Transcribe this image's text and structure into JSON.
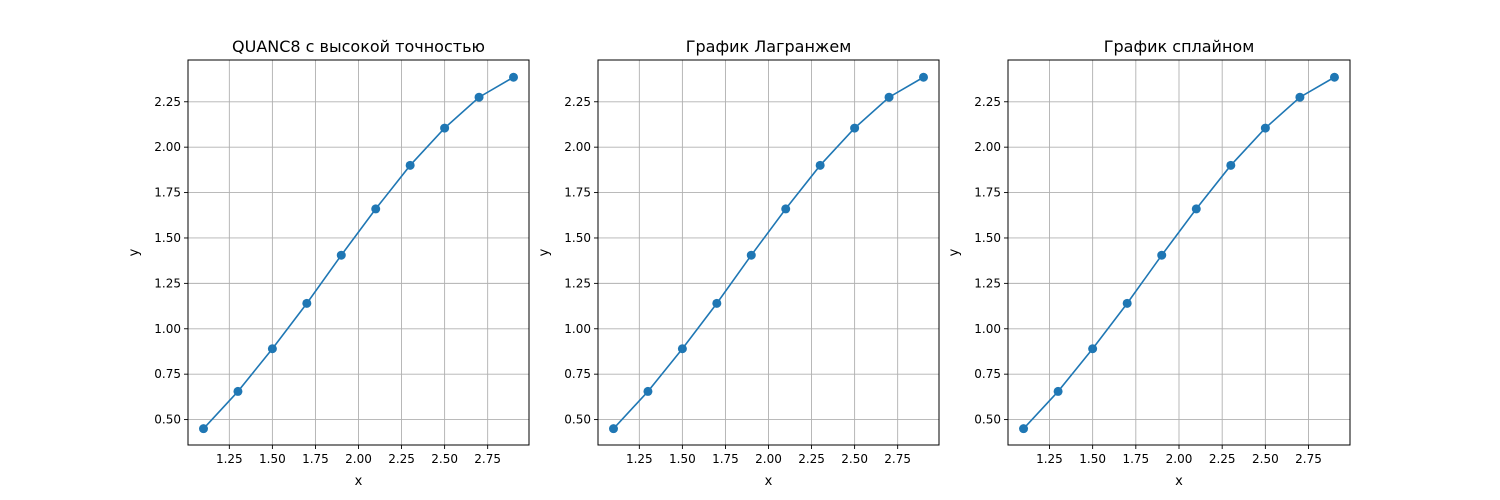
{
  "chart_data": [
    {
      "type": "line",
      "title": "QUANC8 с высокой точностью",
      "xlabel": "x",
      "ylabel": "y",
      "x": [
        1.1,
        1.3,
        1.5,
        1.7,
        1.9,
        2.1,
        2.3,
        2.5,
        2.7,
        2.9
      ],
      "series": [
        {
          "values": [
            0.45,
            0.655,
            0.89,
            1.14,
            1.405,
            1.66,
            1.9,
            2.105,
            2.275,
            2.385
          ]
        }
      ],
      "xlim": [
        1.01,
        2.99
      ],
      "ylim": [
        0.36,
        2.48
      ],
      "xticks": [
        1.25,
        1.5,
        1.75,
        2.0,
        2.25,
        2.5,
        2.75
      ],
      "xtick_labels": [
        "1.25",
        "1.50",
        "1.75",
        "2.00",
        "2.25",
        "2.50",
        "2.75"
      ],
      "yticks": [
        0.5,
        0.75,
        1.0,
        1.25,
        1.5,
        1.75,
        2.0,
        2.25
      ],
      "ytick_labels": [
        "0.50",
        "0.75",
        "1.00",
        "1.25",
        "1.50",
        "1.75",
        "2.00",
        "2.25"
      ],
      "grid": true,
      "color": "#1f77b4"
    },
    {
      "type": "line",
      "title": "График Лагранжем",
      "xlabel": "x",
      "ylabel": "y",
      "x": [
        1.1,
        1.3,
        1.5,
        1.7,
        1.9,
        2.1,
        2.3,
        2.5,
        2.7,
        2.9
      ],
      "series": [
        {
          "values": [
            0.45,
            0.655,
            0.89,
            1.14,
            1.405,
            1.66,
            1.9,
            2.105,
            2.275,
            2.385
          ]
        }
      ],
      "xlim": [
        1.01,
        2.99
      ],
      "ylim": [
        0.36,
        2.48
      ],
      "xticks": [
        1.25,
        1.5,
        1.75,
        2.0,
        2.25,
        2.5,
        2.75
      ],
      "xtick_labels": [
        "1.25",
        "1.50",
        "1.75",
        "2.00",
        "2.25",
        "2.50",
        "2.75"
      ],
      "yticks": [
        0.5,
        0.75,
        1.0,
        1.25,
        1.5,
        1.75,
        2.0,
        2.25
      ],
      "ytick_labels": [
        "0.50",
        "0.75",
        "1.00",
        "1.25",
        "1.50",
        "1.75",
        "2.00",
        "2.25"
      ],
      "grid": true,
      "color": "#1f77b4"
    },
    {
      "type": "line",
      "title": "График сплайном",
      "xlabel": "x",
      "ylabel": "y",
      "x": [
        1.1,
        1.3,
        1.5,
        1.7,
        1.9,
        2.1,
        2.3,
        2.5,
        2.7,
        2.9
      ],
      "series": [
        {
          "values": [
            0.45,
            0.655,
            0.89,
            1.14,
            1.405,
            1.66,
            1.9,
            2.105,
            2.275,
            2.385
          ]
        }
      ],
      "xlim": [
        1.01,
        2.99
      ],
      "ylim": [
        0.36,
        2.48
      ],
      "xticks": [
        1.25,
        1.5,
        1.75,
        2.0,
        2.25,
        2.5,
        2.75
      ],
      "xtick_labels": [
        "1.25",
        "1.50",
        "1.75",
        "2.00",
        "2.25",
        "2.50",
        "2.75"
      ],
      "yticks": [
        0.5,
        0.75,
        1.0,
        1.25,
        1.5,
        1.75,
        2.0,
        2.25
      ],
      "ytick_labels": [
        "0.50",
        "0.75",
        "1.00",
        "1.25",
        "1.50",
        "1.75",
        "2.00",
        "2.25"
      ],
      "grid": true,
      "color": "#1f77b4"
    }
  ]
}
